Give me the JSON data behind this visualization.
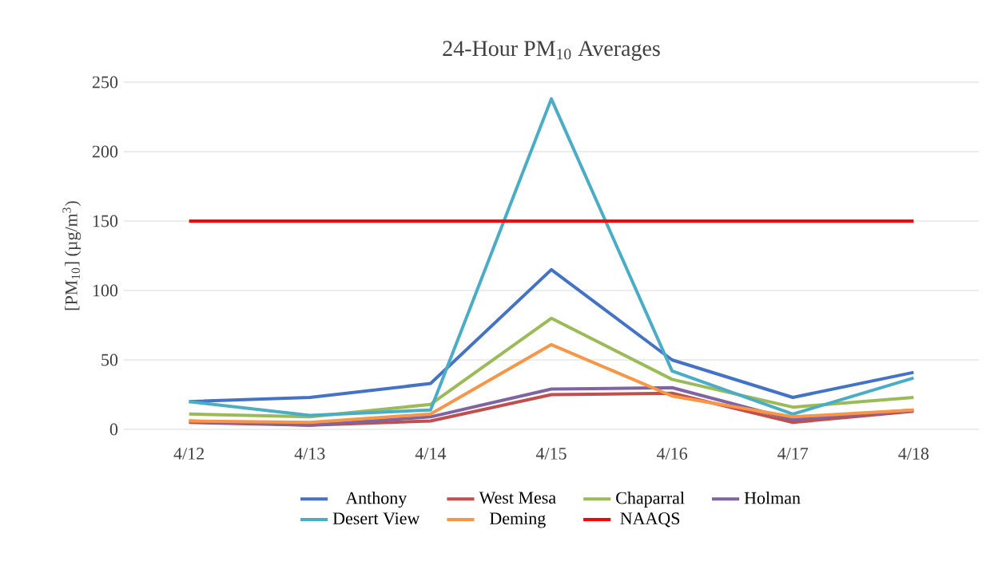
{
  "chart_data": {
    "type": "line",
    "title": "24-Hour PM$_{10}$ Averages",
    "ylabel": "[PM$_{10}$] (µg/m$^{3}$)",
    "categories": [
      "4/12",
      "4/13",
      "4/14",
      "4/15",
      "4/16",
      "4/17",
      "4/18"
    ],
    "series": [
      {
        "name": "Anthony",
        "color": "#4472c4",
        "values": [
          20,
          23,
          33,
          115,
          50,
          23,
          41
        ]
      },
      {
        "name": "West Mesa",
        "color": "#c0504d",
        "values": [
          5,
          3,
          6,
          25,
          26,
          5,
          13
        ]
      },
      {
        "name": "Chaparral",
        "color": "#9bbb59",
        "values": [
          11,
          9,
          18,
          80,
          36,
          16,
          23
        ]
      },
      {
        "name": "Holman",
        "color": "#8064a2",
        "values": [
          6,
          3,
          9,
          29,
          30,
          7,
          14
        ]
      },
      {
        "name": "Desert View",
        "color": "#4bacc6",
        "values": [
          20,
          10,
          14,
          238,
          42,
          11,
          37
        ]
      },
      {
        "name": "Deming",
        "color": "#f79646",
        "values": [
          6,
          5,
          11,
          61,
          24,
          9,
          14
        ]
      },
      {
        "name": "NAAQS",
        "color": "#ff0000",
        "values": [
          150,
          150,
          150,
          150,
          150,
          150,
          150
        ]
      }
    ],
    "ylim": [
      0,
      250
    ],
    "yticks": [
      0,
      50,
      100,
      150,
      200,
      250
    ],
    "grid": "y",
    "legend": "bottom",
    "marker": "none",
    "line_style": "solid"
  }
}
